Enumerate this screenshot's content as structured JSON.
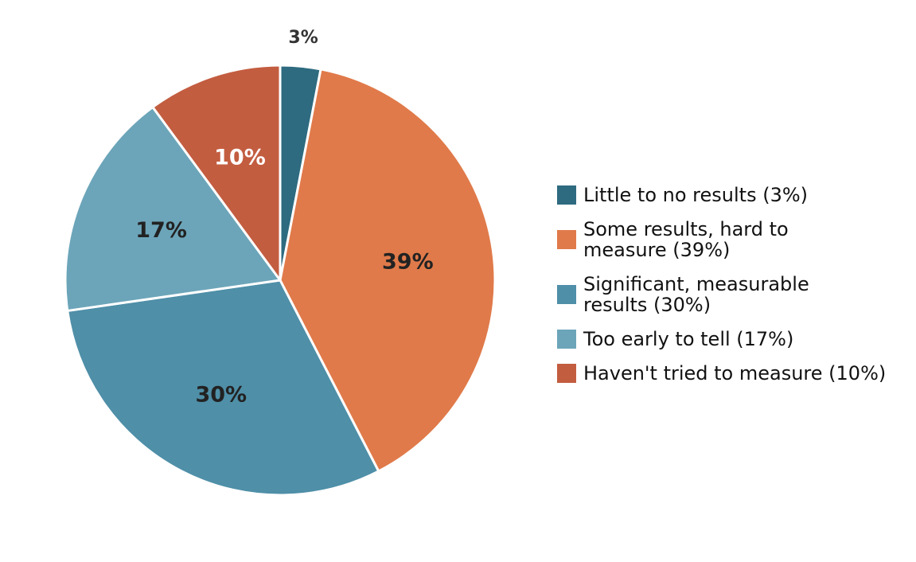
{
  "chart_data": {
    "type": "pie",
    "title": "",
    "start_angle_deg": 90,
    "direction": "clockwise",
    "legend_position": "right",
    "slices": [
      {
        "label": "Little to no results (3%)",
        "legend_lines": [
          "Little to no results (3%)"
        ],
        "value": 3,
        "display": "3%",
        "color": "#2e6b80",
        "label_color": "#333333",
        "label_outside": true
      },
      {
        "label": "Some results, hard to measure (39%)",
        "legend_lines": [
          "Some results, hard to",
          "measure (39%)"
        ],
        "value": 39,
        "display": "39%",
        "color": "#e07a4a",
        "label_color": "#222222",
        "label_outside": false
      },
      {
        "label": "Significant, measurable results (30%)",
        "legend_lines": [
          "Significant, measurable",
          "results (30%)"
        ],
        "value": 30,
        "display": "30%",
        "color": "#4f8fa8",
        "label_color": "#222222",
        "label_outside": false
      },
      {
        "label": "Too early to tell (17%)",
        "legend_lines": [
          "Too early to tell (17%)"
        ],
        "value": 17,
        "display": "17%",
        "color": "#6ca5b9",
        "label_color": "#222222",
        "label_outside": false
      },
      {
        "label": "Haven't tried to measure (10%)",
        "legend_lines": [
          "Haven't tried to measure (10%)"
        ],
        "value": 10,
        "display": "10%",
        "color": "#c35d40",
        "label_color": "#ffffff",
        "label_outside": false
      }
    ]
  }
}
